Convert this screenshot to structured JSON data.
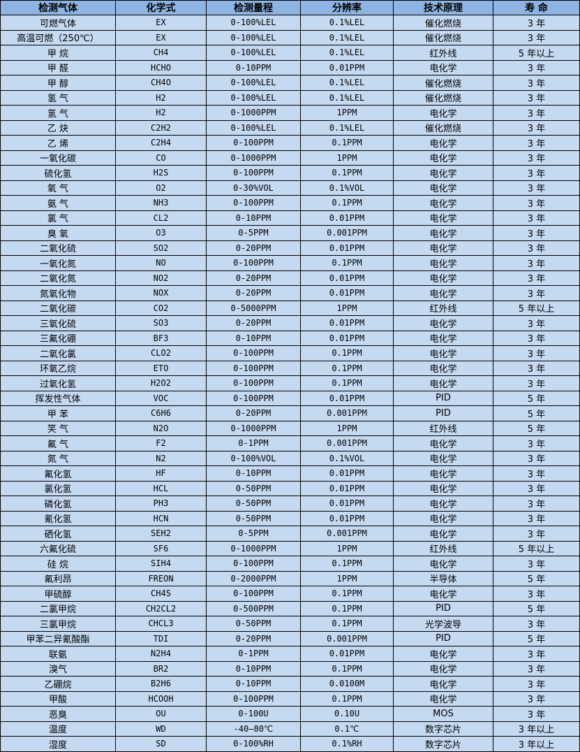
{
  "table": {
    "headers": [
      "检测气体",
      "化学式",
      "检测量程",
      "分辨率",
      "技术原理",
      "寿 命"
    ],
    "rows": [
      [
        "可燃气体",
        "EX",
        "0-100%LEL",
        "0.1%LEL",
        "催化燃烧",
        "3 年"
      ],
      [
        "高温可燃（250℃）",
        "EX",
        "0-100%LEL",
        "0.1%LEL",
        "催化燃烧",
        "3 年"
      ],
      [
        "甲 烷",
        "CH4",
        "0-100%LEL",
        "0.1%LEL",
        "红外线",
        "5 年以上"
      ],
      [
        "甲 醛",
        "HCHO",
        "0-10PPM",
        "0.01PPM",
        "电化学",
        "3 年"
      ],
      [
        "甲 醇",
        "CH4O",
        "0-100%LEL",
        "0.1%LEL",
        "催化燃烧",
        "3 年"
      ],
      [
        "氢 气",
        "H2",
        "0-100%LEL",
        "0.1%LEL",
        "催化燃烧",
        "3 年"
      ],
      [
        "氢 气",
        "H2",
        "0-1000PPM",
        "1PPM",
        "电化学",
        "3 年"
      ],
      [
        "乙 炔",
        "C2H2",
        "0-100%LEL",
        "0.1%LEL",
        "催化燃烧",
        "3 年"
      ],
      [
        "乙 烯",
        "C2H4",
        "0-100PPM",
        "0.1PPM",
        "电化学",
        "3 年"
      ],
      [
        "一氧化碳",
        "CO",
        "0-1000PPM",
        "1PPM",
        "电化学",
        "3 年"
      ],
      [
        "硫化氢",
        "H2S",
        "0-100PPM",
        "0.1PPM",
        "电化学",
        "3 年"
      ],
      [
        "氧 气",
        "O2",
        "0-30%VOL",
        "0.1%VOL",
        "电化学",
        "3 年"
      ],
      [
        "氨 气",
        "NH3",
        "0-100PPM",
        "0.1PPM",
        "电化学",
        "3 年"
      ],
      [
        "氯 气",
        "CL2",
        "0-10PPM",
        "0.01PPM",
        "电化学",
        "3 年"
      ],
      [
        "臭 氧",
        "O3",
        "0-5PPM",
        "0.001PPM",
        "电化学",
        "3 年"
      ],
      [
        "二氧化硫",
        "SO2",
        "0-20PPM",
        "0.01PPM",
        "电化学",
        "3 年"
      ],
      [
        "一氧化氮",
        "NO",
        "0-100PPM",
        "0.1PPM",
        "电化学",
        "3 年"
      ],
      [
        "二氧化氮",
        "NO2",
        "0-20PPM",
        "0.01PPM",
        "电化学",
        "3 年"
      ],
      [
        "氮氧化物",
        "NOX",
        "0-20PPM",
        "0.01PPM",
        "电化学",
        "3 年"
      ],
      [
        "二氧化碳",
        "CO2",
        "0-5000PPM",
        "1PPM",
        "红外线",
        "5 年以上"
      ],
      [
        "三氧化硫",
        "SO3",
        "0-20PPM",
        "0.01PPM",
        "电化学",
        "3 年"
      ],
      [
        "三氟化硼",
        "BF3",
        "0-10PPM",
        "0.01PPM",
        "电化学",
        "3 年"
      ],
      [
        "二氧化氯",
        "CLO2",
        "0-100PPM",
        "0.1PPM",
        "电化学",
        "3 年"
      ],
      [
        "环氧乙烷",
        "ETO",
        "0-100PPM",
        "0.1PPM",
        "电化学",
        "3 年"
      ],
      [
        "过氧化氢",
        "H2O2",
        "0-100PPM",
        "0.1PPM",
        "电化学",
        "3 年"
      ],
      [
        "挥发性气体",
        "VOC",
        "0-100PPM",
        "0.01PPM",
        "PID",
        "5 年"
      ],
      [
        "甲 苯",
        "C6H6",
        "0-20PPM",
        "0.001PPM",
        "PID",
        "5 年"
      ],
      [
        "笑 气",
        "N2O",
        "0-1000PPM",
        "1PPM",
        "红外线",
        "5 年"
      ],
      [
        "氟 气",
        "F2",
        "0-1PPM",
        "0.001PPM",
        "电化学",
        "3 年"
      ],
      [
        "氮 气",
        "N2",
        "0-100%VOL",
        "0.1%VOL",
        "电化学",
        "3 年"
      ],
      [
        "氟化氢",
        "HF",
        "0-10PPM",
        "0.01PPM",
        "电化学",
        "3 年"
      ],
      [
        "氯化氢",
        "HCL",
        "0-50PPM",
        "0.01PPM",
        "电化学",
        "3 年"
      ],
      [
        "磷化氢",
        "PH3",
        "0-50PPM",
        "0.01PPM",
        "电化学",
        "3 年"
      ],
      [
        "氰化氢",
        "HCN",
        "0-50PPM",
        "0.01PPM",
        "电化学",
        "3 年"
      ],
      [
        "硒化氢",
        "SEH2",
        "0-5PPM",
        "0.001PPM",
        "电化学",
        "3 年"
      ],
      [
        "六氟化硫",
        "SF6",
        "0-1000PPM",
        "1PPM",
        "红外线",
        "5 年以上"
      ],
      [
        "硅 烷",
        "SIH4",
        "0-100PPM",
        "0.1PPM",
        "电化学",
        "3 年"
      ],
      [
        "氟利昂",
        "FREON",
        "0-2000PPM",
        "1PPM",
        "半导体",
        "5 年"
      ],
      [
        "甲硫醇",
        "CH4S",
        "0-100PPM",
        "0.1PPM",
        "电化学",
        "3 年"
      ],
      [
        "二氯甲烷",
        "CH2CL2",
        "0-500PPM",
        "0.1PPM",
        "PID",
        "5 年"
      ],
      [
        "三氯甲烷",
        "CHCL3",
        "0-50PPM",
        "0.1PPM",
        "光学波导",
        "3 年"
      ],
      [
        "甲苯二异氰酸酯",
        "TDI",
        "0-20PPM",
        "0.001PPM",
        "PID",
        "5 年"
      ],
      [
        "联氨",
        "N2H4",
        "0-1PPM",
        "0.01PPM",
        "电化学",
        "3 年"
      ],
      [
        "溴气",
        "BR2",
        "0-10PPM",
        "0.1PPM",
        "电化学",
        "3 年"
      ],
      [
        "乙硼烷",
        "B2H6",
        "0-10PPM",
        "0.0100M",
        "电化学",
        "3 年"
      ],
      [
        "甲酸",
        "HCOOH",
        "0-100PPM",
        "0.1PPM",
        "电化学",
        "3 年"
      ],
      [
        "恶臭",
        "OU",
        "0-100U",
        "0.10U",
        "MOS",
        "3 年"
      ],
      [
        "温度",
        "WD",
        "-40—80℃",
        "0.1℃",
        "数字芯片",
        "3 年以上"
      ],
      [
        "湿度",
        "SD",
        "0-100%RH",
        "0.1%RH",
        "数字芯片",
        "3 年以上"
      ]
    ]
  },
  "colors": {
    "header_bg": "#8db4e2",
    "row_bg": "#c5d9f1",
    "border": "#000000"
  }
}
